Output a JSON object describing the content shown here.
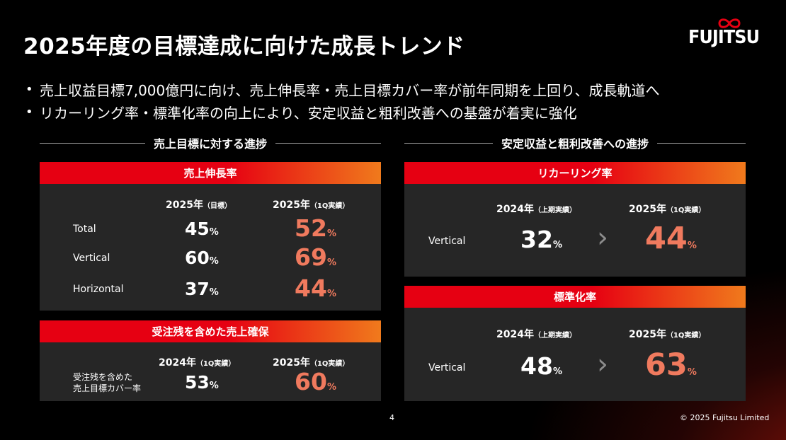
{
  "title": "2025年度の目標達成に向けた成長トレンド",
  "logo": {
    "text": "FUJITSU"
  },
  "bullets": [
    "売上収益目標7,000億円に向け、売上伸長率・売上目標カバー率が前年同期を上回り、成長軌道へ",
    "リカーリング率・標準化率の向上により、安定収益と粗利改善への基盤が着実に強化"
  ],
  "bullet_symbol": "•",
  "left_section": {
    "header": "売上目標に対する進捗",
    "growth": {
      "title": "売上伸長率",
      "col1": {
        "year": "2025年",
        "note": "（目標）"
      },
      "col2": {
        "year": "2025年",
        "note": "（1Q実績）"
      },
      "rows": [
        {
          "label": "Total",
          "v1": "45",
          "v2": "52"
        },
        {
          "label": "Vertical",
          "v1": "60",
          "v2": "69"
        },
        {
          "label": "Horizontal",
          "v1": "37",
          "v2": "44"
        }
      ]
    },
    "backlog": {
      "title": "受注残を含めた売上確保",
      "col1": {
        "year": "2024年",
        "note": "（1Q実績）"
      },
      "col2": {
        "year": "2025年",
        "note": "（1Q実績）"
      },
      "label_line1": "受注残を含めた",
      "label_line2": "売上目標カバー率",
      "v1": "53",
      "v2": "60"
    }
  },
  "right_section": {
    "header": "安定収益と粗利改善への進捗",
    "recurring": {
      "title": "リカーリング率",
      "col1": {
        "year": "2024年",
        "note": "（上期実績）"
      },
      "col2": {
        "year": "2025年",
        "note": "（1Q実績）"
      },
      "label": "Vertical",
      "v1": "32",
      "v2": "44"
    },
    "standard": {
      "title": "標準化率",
      "col1": {
        "year": "2024年",
        "note": "（上期実績）"
      },
      "col2": {
        "year": "2025年",
        "note": "（1Q実績）"
      },
      "label": "Vertical",
      "v1": "48",
      "v2": "63"
    }
  },
  "percent_sign": "%",
  "chevron": "›",
  "page_number": "4",
  "copyright": "© 2025 Fujitsu Limited",
  "colors": {
    "accent_red": "#e60012",
    "accent_orange": "#f07a1c",
    "highlight_value": "#f07a5e",
    "panel_bg": "#262626"
  }
}
